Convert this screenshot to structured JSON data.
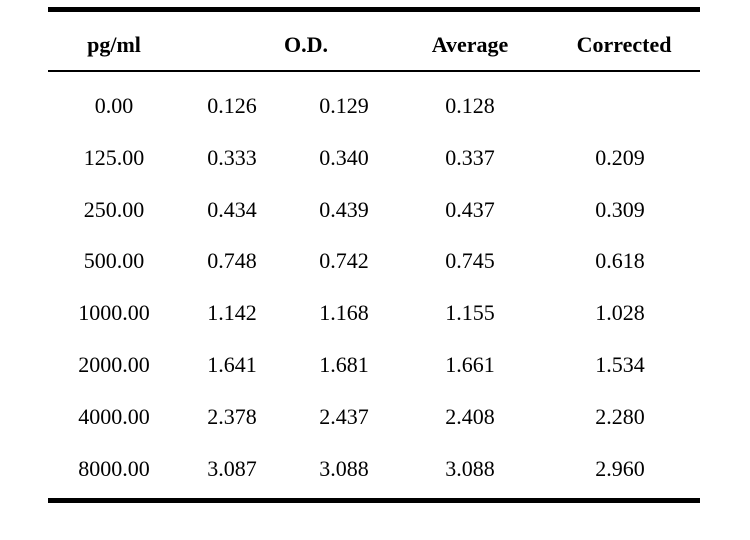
{
  "table": {
    "headers": {
      "concentration": "pg/ml",
      "od": "O.D.",
      "average": "Average",
      "corrected": "Corrected"
    },
    "rows": [
      {
        "conc": "0.00",
        "od1": "0.126",
        "od2": "0.129",
        "avg": "0.128",
        "corr": ""
      },
      {
        "conc": "125.00",
        "od1": "0.333",
        "od2": "0.340",
        "avg": "0.337",
        "corr": "0.209"
      },
      {
        "conc": "250.00",
        "od1": "0.434",
        "od2": "0.439",
        "avg": "0.437",
        "corr": "0.309"
      },
      {
        "conc": "500.00",
        "od1": "0.748",
        "od2": "0.742",
        "avg": "0.745",
        "corr": "0.618"
      },
      {
        "conc": "1000.00",
        "od1": "1.142",
        "od2": "1.168",
        "avg": "1.155",
        "corr": "1.028"
      },
      {
        "conc": "2000.00",
        "od1": "1.641",
        "od2": "1.681",
        "avg": "1.661",
        "corr": "1.534"
      },
      {
        "conc": "4000.00",
        "od1": "2.378",
        "od2": "2.437",
        "avg": "2.408",
        "corr": "2.280"
      },
      {
        "conc": "8000.00",
        "od1": "3.087",
        "od2": "3.088",
        "avg": "3.088",
        "corr": "2.960"
      }
    ]
  }
}
